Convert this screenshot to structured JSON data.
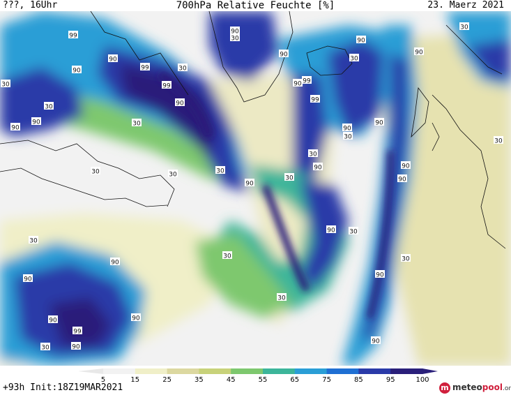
{
  "header": {
    "left": "???, 16Uhr",
    "title": "700hPa Relative Feuchte [%]",
    "date": "23. Maerz 2021"
  },
  "footer": {
    "run": "+93h Init:18Z19MAR2021"
  },
  "logo": {
    "brand_prefix": "meteo",
    "brand_accent": "pool",
    "brand_suffix": ".org"
  },
  "legend": {
    "ticks": [
      "5",
      "15",
      "25",
      "35",
      "45",
      "55",
      "65",
      "75",
      "85",
      "95",
      "100"
    ],
    "colors": [
      "#f2f2f2",
      "#f0efc8",
      "#dcd8a0",
      "#c8d27a",
      "#7ec86e",
      "#3cb59a",
      "#2a9ed6",
      "#1f6fd3",
      "#2a3aa8",
      "#2a1f7a"
    ]
  },
  "map_labels": [
    {
      "text": "99"
    },
    {
      "text": "90"
    },
    {
      "text": "90"
    },
    {
      "text": "99"
    },
    {
      "text": "30"
    },
    {
      "text": "99"
    },
    {
      "text": "90"
    },
    {
      "text": "90"
    },
    {
      "text": "30"
    },
    {
      "text": "30"
    },
    {
      "text": "90"
    },
    {
      "text": "90"
    },
    {
      "text": "30"
    },
    {
      "text": "30"
    },
    {
      "text": "30"
    },
    {
      "text": "30"
    },
    {
      "text": "30"
    },
    {
      "text": "90"
    },
    {
      "text": "99"
    },
    {
      "text": "90"
    },
    {
      "text": "90"
    },
    {
      "text": "90"
    },
    {
      "text": "30"
    },
    {
      "text": "90"
    },
    {
      "text": "99"
    },
    {
      "text": "30"
    },
    {
      "text": "30"
    },
    {
      "text": "90"
    },
    {
      "text": "30"
    },
    {
      "text": "90"
    },
    {
      "text": "30"
    },
    {
      "text": "90"
    },
    {
      "text": "30"
    },
    {
      "text": "90"
    },
    {
      "text": "90"
    },
    {
      "text": "30"
    },
    {
      "text": "90"
    },
    {
      "text": "30"
    },
    {
      "text": "30"
    },
    {
      "text": "90"
    },
    {
      "text": "30"
    },
    {
      "text": "30"
    },
    {
      "text": "90"
    },
    {
      "text": "90"
    },
    {
      "text": "90"
    },
    {
      "text": "99"
    },
    {
      "text": "90"
    },
    {
      "text": "90"
    },
    {
      "text": "30"
    },
    {
      "text": "90"
    }
  ]
}
